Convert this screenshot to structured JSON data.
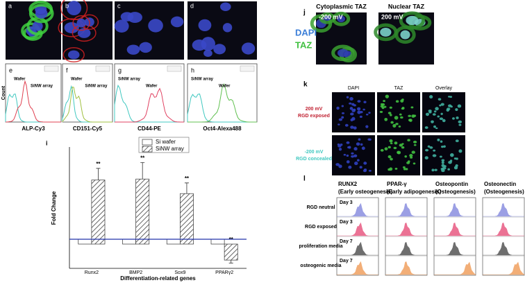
{
  "panel_labels": [
    "a",
    "b",
    "c",
    "d",
    "e",
    "f",
    "g",
    "h",
    "i",
    "j",
    "k",
    "l"
  ],
  "histograms": {
    "ylabel": "Count",
    "panels": [
      {
        "xlabel": "ALP-Cy3",
        "texts": [
          "Wafer",
          "SiNW array"
        ]
      },
      {
        "xlabel": "CD151-Cy5",
        "texts": [
          "Wafer",
          "SiNW array"
        ]
      },
      {
        "xlabel": "CD44-PE",
        "texts": [
          "SiNW array",
          "Wafer"
        ]
      },
      {
        "xlabel": "Oct4-Alexa488",
        "texts": [
          "SiNW array",
          "Wafer"
        ]
      }
    ]
  },
  "chart_data": {
    "type": "bar",
    "y_label": "Fold Change",
    "x_label": "Differentiation-related genes",
    "categories": [
      "Runx2",
      "BMP2",
      "Sox9",
      "PPARγ2"
    ],
    "series": [
      {
        "name": "Si wafer",
        "color": "#ffffff",
        "values": [
          1,
          1,
          1,
          1
        ]
      },
      {
        "name": "SiNW array",
        "color": "#888888",
        "values": [
          13.2,
          13.4,
          10.4,
          -3.3
        ],
        "errors": [
          2.4,
          3.4,
          2.2,
          0.6
        ],
        "annotations": [
          "**",
          "**",
          "**",
          "**"
        ]
      }
    ],
    "reference_line": 1,
    "reference_color": "#2233aa",
    "ylim": [
      -5,
      20
    ]
  },
  "panel_j": {
    "titles": [
      "Cytoplasmic TAZ",
      "Nuclear TAZ"
    ],
    "voltages": [
      "-200 mV",
      "200 mV"
    ],
    "stains": [
      "DAPI",
      "TAZ"
    ]
  },
  "panel_k": {
    "columns": [
      "DAPI",
      "TAZ",
      "Overlay"
    ],
    "rows": [
      {
        "voltage": "200 mV",
        "condition": "RGD exposed"
      },
      {
        "voltage": "-200 mV",
        "condition": "RGD concealed"
      }
    ]
  },
  "panel_l": {
    "columns": [
      {
        "name": "RUNX2",
        "note": "(Early osteogenesis)"
      },
      {
        "name": "PPAR-γ",
        "note": "(Early adipogenesis)"
      },
      {
        "name": "Osteopontin",
        "note": "(Osteogenesis)"
      },
      {
        "name": "Osteonectin",
        "note": "(Osteogenesis)"
      }
    ],
    "rows": [
      {
        "condition": "RGD neutral",
        "day": "Day 3"
      },
      {
        "condition": "RGD exposed",
        "day": "Day 3"
      },
      {
        "condition": "proliferation media",
        "day": "Day 7"
      },
      {
        "condition": "osteogenic media",
        "day": "Day 7"
      }
    ]
  }
}
